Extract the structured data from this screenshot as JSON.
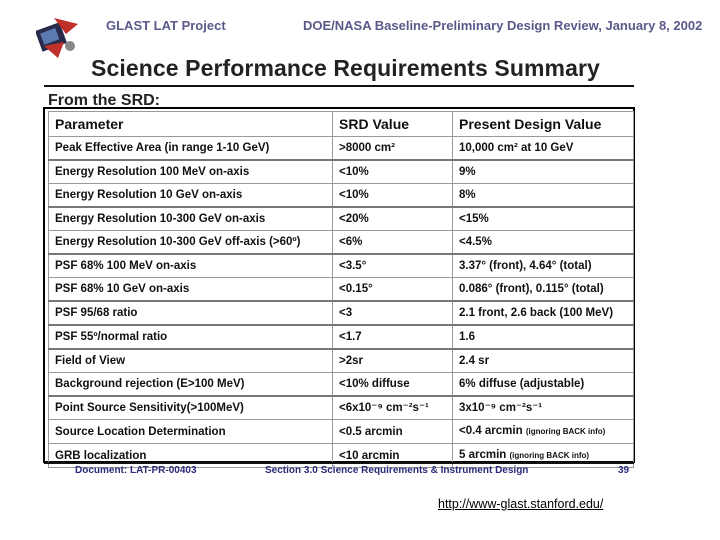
{
  "header": {
    "left": "GLAST LAT Project",
    "right": "DOE/NASA Baseline-Preliminary Design Review, January 8, 2002"
  },
  "title": "Science Performance Requirements Summary",
  "subtitle": "From the SRD:",
  "table": {
    "headers": [
      "Parameter",
      "SRD Value",
      "Present Design Value"
    ],
    "rows": [
      {
        "param": "Peak Effective Area (in range 1-10 GeV)",
        "srd": ">8000 cm²",
        "design": "10,000 cm² at 10 GeV",
        "note": ""
      },
      {
        "param": "Energy Resolution 100 MeV on-axis",
        "srd": "<10%",
        "design": "9%",
        "note": ""
      },
      {
        "param": "Energy Resolution 10 GeV on-axis",
        "srd": "<10%",
        "design": "8%",
        "note": ""
      },
      {
        "param": "Energy Resolution 10-300 GeV on-axis",
        "srd": "<20%",
        "design": "<15%",
        "note": ""
      },
      {
        "param": "Energy Resolution 10-300 GeV off-axis (>60º)",
        "srd": "<6%",
        "design": "<4.5%",
        "note": ""
      },
      {
        "param": "PSF 68% 100 MeV on-axis",
        "srd": "<3.5°",
        "design": "3.37° (front), 4.64° (total)",
        "note": ""
      },
      {
        "param": "PSF 68% 10 GeV on-axis",
        "srd": "<0.15°",
        "design": "0.086° (front), 0.115° (total)",
        "note": ""
      },
      {
        "param": "PSF 95/68 ratio",
        "srd": "<3",
        "design": "2.1 front, 2.6 back (100 MeV)",
        "note": ""
      },
      {
        "param": "PSF 55º/normal ratio",
        "srd": "<1.7",
        "design": "1.6",
        "note": ""
      },
      {
        "param": "Field of View",
        "srd": ">2sr",
        "design": "2.4 sr",
        "note": ""
      },
      {
        "param": "Background rejection (E>100 MeV)",
        "srd": "<10% diffuse",
        "design": "6% diffuse (adjustable)",
        "note": ""
      },
      {
        "param": "Point Source Sensitivity(>100MeV)",
        "srd": "<6x10⁻⁹ cm⁻²s⁻¹",
        "design": "3x10⁻⁹ cm⁻²s⁻¹",
        "note": ""
      },
      {
        "param": "Source Location Determination",
        "srd": "<0.5 arcmin",
        "design": "<0.4 arcmin",
        "note": "(ignoring BACK info)"
      },
      {
        "param": "GRB localization",
        "srd": "<10 arcmin",
        "design": "5 arcmin",
        "note": "(ignoring BACK info)"
      }
    ]
  },
  "footer": {
    "document": "Document: LAT-PR-00403",
    "section": "Section 3.0 Science Requirements & Instrument Design",
    "page": "39"
  },
  "url": "http://www-glast.stanford.edu/",
  "colors": {
    "header_text": "#5a5a8a",
    "footer_text": "#2a2a7a",
    "logo_red": "#c0302a",
    "logo_dark": "#2a2a4a"
  }
}
